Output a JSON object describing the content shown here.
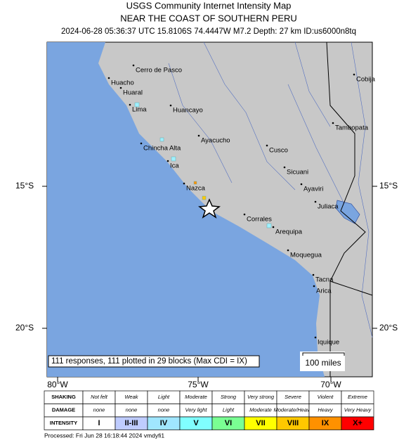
{
  "header": {
    "title": "USGS Community Internet Intensity Map",
    "subtitle": "NEAR THE COAST OF SOUTHERN PERU",
    "event": "2024-06-28 05:36:37 UTC 15.8106S 74.4447W M7.2 Depth: 27 km ID:us6000n8tq"
  },
  "map": {
    "cities": [
      "Cerro de Pasco",
      "Huacho",
      "Huaral",
      "Lima",
      "Huancayo",
      "Chincha Alta",
      "Ayacucho",
      "Cusco",
      "Ica",
      "Sicuani",
      "Ayaviri",
      "Nazca",
      "Juliaca",
      "Corrales",
      "Arequipa",
      "Moquegua",
      "Tacna",
      "Arica",
      "Iquique",
      "Cobija",
      "Tambopata"
    ],
    "lat_labels": [
      "15°S",
      "20°S"
    ],
    "lon_labels": [
      "80°W",
      "75°W",
      "70°W"
    ],
    "responses": "111 responses, 111 plotted in 29 blocks (Max CDI = IX)",
    "scale": "100 miles"
  },
  "legend": {
    "row_labels": [
      "SHAKING",
      "DAMAGE",
      "INTENSITY"
    ],
    "shaking": [
      "Not felt",
      "Weak",
      "Light",
      "Moderate",
      "Strong",
      "Very strong",
      "Severe",
      "Violent",
      "Extreme"
    ],
    "damage": [
      "none",
      "none",
      "none",
      "Very light",
      "Light",
      "Moderate",
      "Moderate/Heavy",
      "Heavy",
      "Very Heavy"
    ],
    "intensity": [
      "I",
      "II-III",
      "IV",
      "V",
      "VI",
      "VII",
      "VIII",
      "IX",
      "X+"
    ]
  },
  "footer": "Processed: Fri Jun 28 16:18:44 2024 vmdyfi1"
}
